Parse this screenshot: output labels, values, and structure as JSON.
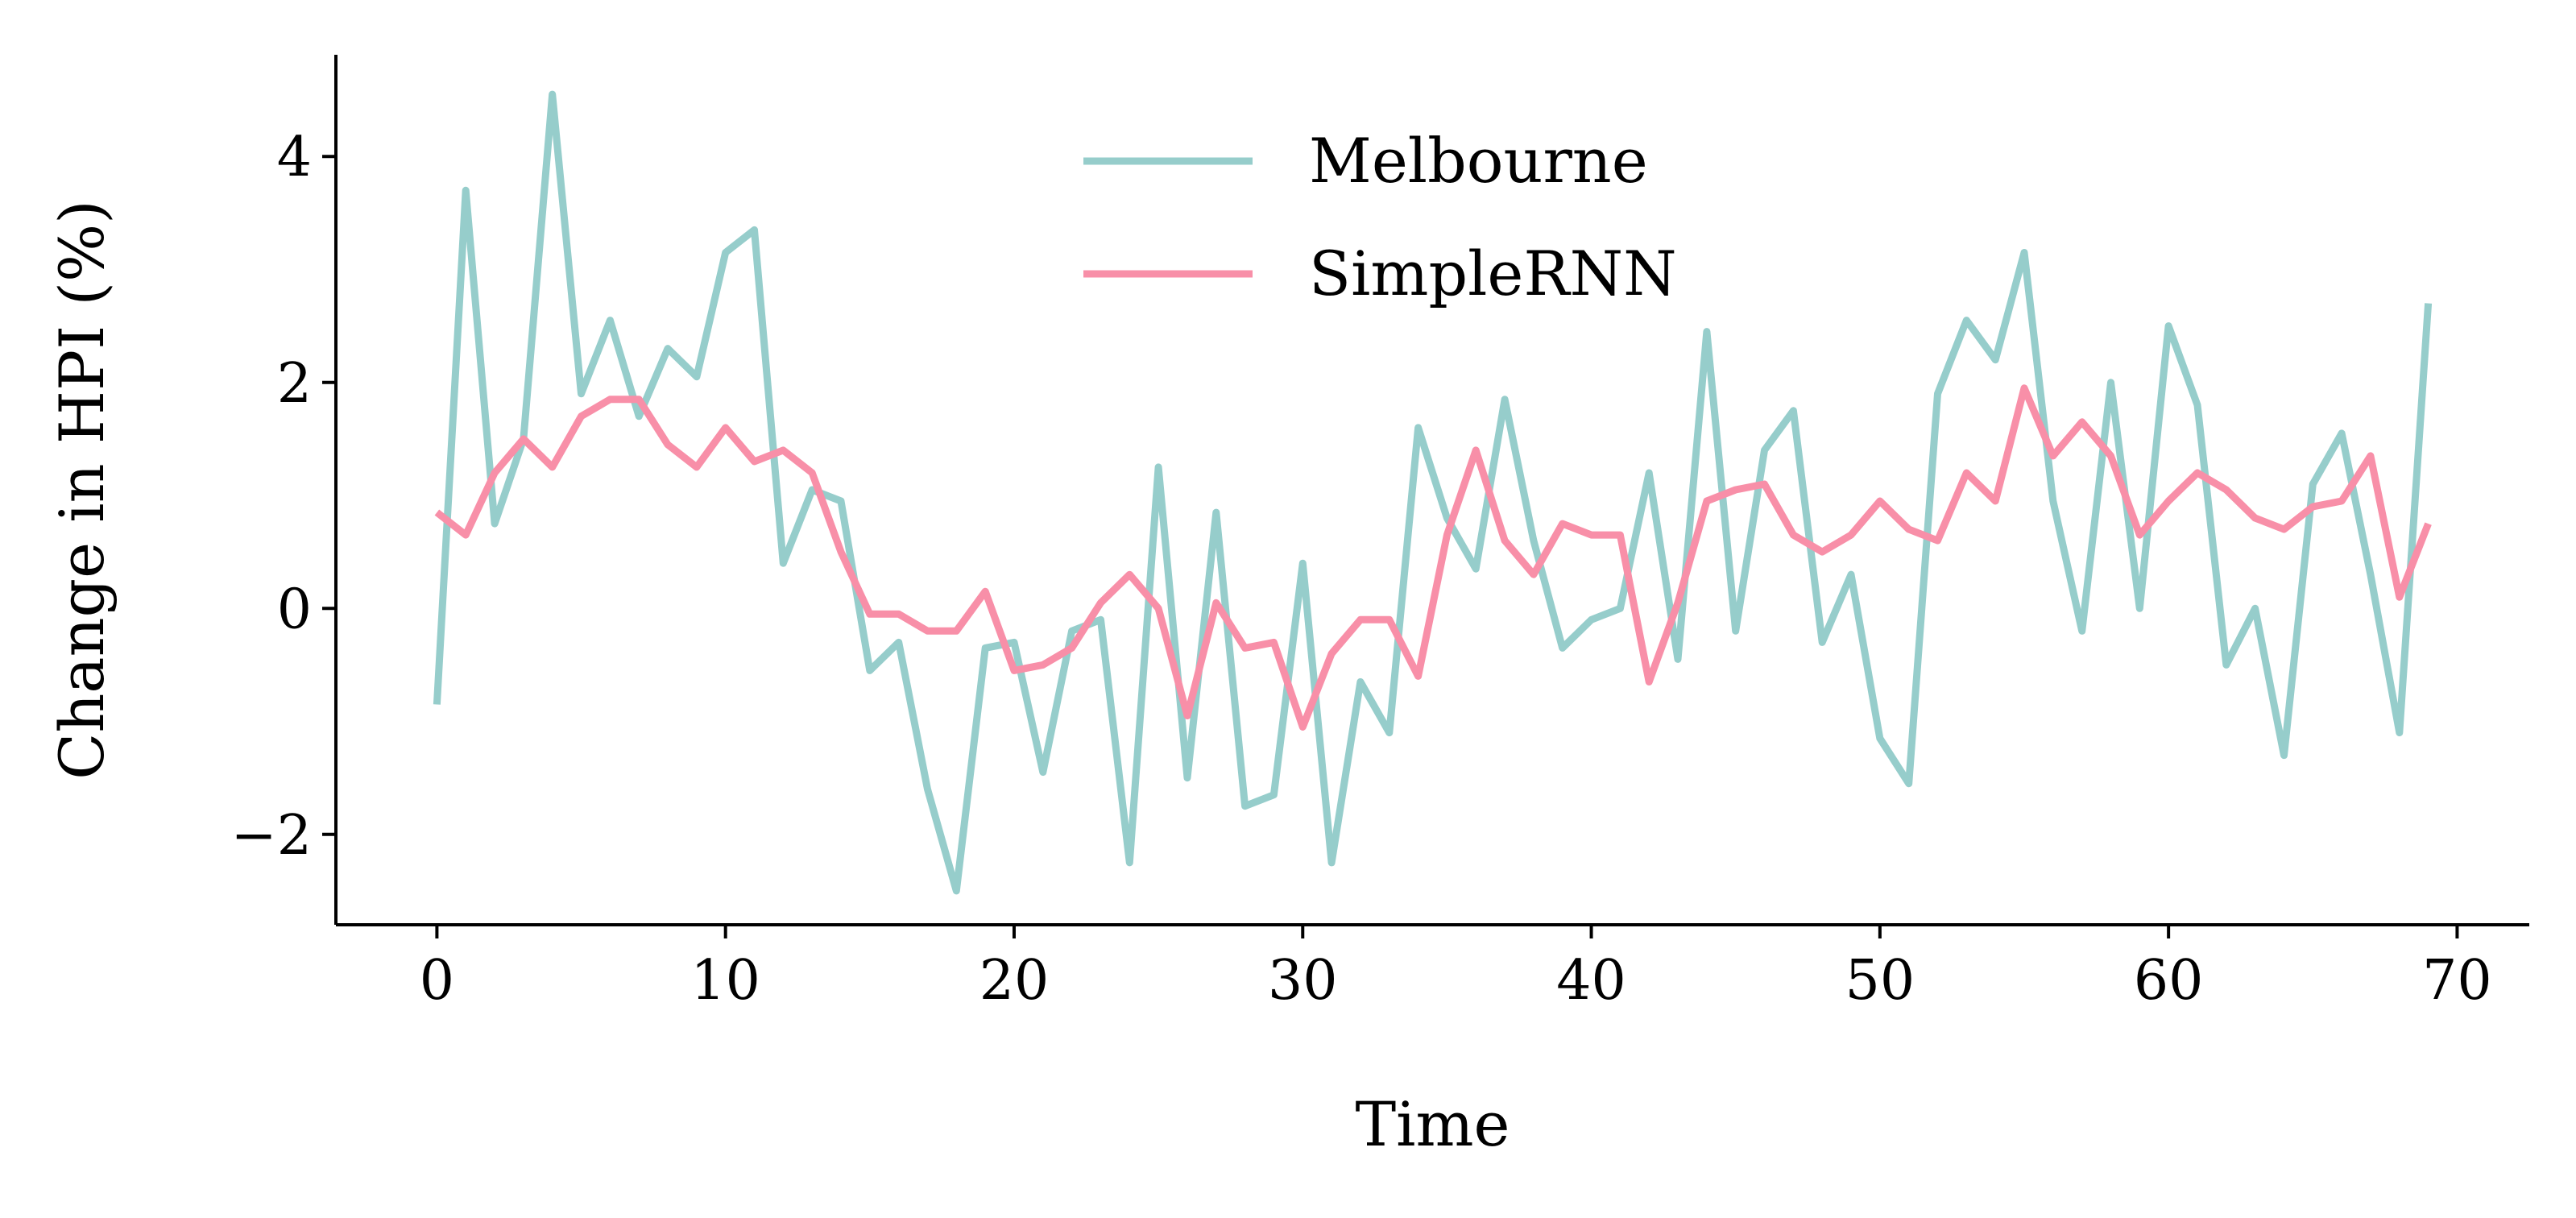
{
  "chart_data": {
    "type": "line",
    "title": "",
    "xlabel": "Time",
    "ylabel": "Change in HPI (%)",
    "xlim": [
      -3.5,
      72.5
    ],
    "ylim": [
      -2.8,
      4.9
    ],
    "xticks": [
      0,
      10,
      20,
      30,
      40,
      50,
      60,
      70
    ],
    "yticks": [
      -2,
      0,
      2,
      4
    ],
    "ytick_labels": [
      "−2",
      "0",
      "2",
      "4"
    ],
    "grid": false,
    "legend": {
      "position": "upper-center"
    },
    "x": [
      0,
      1,
      2,
      3,
      4,
      5,
      6,
      7,
      8,
      9,
      10,
      11,
      12,
      13,
      14,
      15,
      16,
      17,
      18,
      19,
      20,
      21,
      22,
      23,
      24,
      25,
      26,
      27,
      28,
      29,
      30,
      31,
      32,
      33,
      34,
      35,
      36,
      37,
      38,
      39,
      40,
      41,
      42,
      43,
      44,
      45,
      46,
      47,
      48,
      49,
      50,
      51,
      52,
      53,
      54,
      55,
      56,
      57,
      58,
      59,
      60,
      61,
      62,
      63,
      64,
      65,
      66,
      67,
      68,
      69
    ],
    "series": [
      {
        "name": "Melbourne",
        "color": "#96cdcb",
        "values": [
          -0.85,
          3.7,
          0.75,
          1.5,
          4.55,
          1.9,
          2.55,
          1.7,
          2.3,
          2.05,
          3.15,
          3.35,
          0.4,
          1.05,
          0.95,
          -0.55,
          -0.3,
          -1.6,
          -2.5,
          -0.35,
          -0.3,
          -1.45,
          -0.2,
          -0.1,
          -2.25,
          1.25,
          -1.5,
          0.85,
          -1.75,
          -1.65,
          0.4,
          -2.25,
          -0.65,
          -1.1,
          1.6,
          0.8,
          0.35,
          1.85,
          0.6,
          -0.35,
          -0.1,
          0.0,
          1.2,
          -0.45,
          2.45,
          -0.2,
          1.4,
          1.75,
          -0.3,
          0.3,
          -1.15,
          -1.55,
          1.9,
          2.55,
          2.2,
          3.15,
          0.95,
          -0.2,
          2.0,
          0.0,
          2.5,
          1.8,
          -0.5,
          0.0,
          -1.3,
          1.1,
          1.55,
          0.3,
          -1.1,
          2.7
        ]
      },
      {
        "name": "SimpleRNN",
        "color": "#f88fa8",
        "values": [
          0.85,
          0.65,
          1.2,
          1.5,
          1.25,
          1.7,
          1.85,
          1.85,
          1.45,
          1.25,
          1.6,
          1.3,
          1.4,
          1.2,
          0.5,
          -0.05,
          -0.05,
          -0.2,
          -0.2,
          0.15,
          -0.55,
          -0.5,
          -0.35,
          0.05,
          0.3,
          0.0,
          -0.95,
          0.05,
          -0.35,
          -0.3,
          -1.05,
          -0.4,
          -0.1,
          -0.1,
          -0.6,
          0.65,
          1.4,
          0.6,
          0.3,
          0.75,
          0.65,
          0.65,
          -0.65,
          0.05,
          0.95,
          1.05,
          1.1,
          0.65,
          0.5,
          0.65,
          0.95,
          0.7,
          0.6,
          1.2,
          0.95,
          1.95,
          1.35,
          1.65,
          1.35,
          0.65,
          0.95,
          1.2,
          1.05,
          0.8,
          0.7,
          0.9,
          0.95,
          1.35,
          0.1,
          0.75
        ]
      }
    ]
  }
}
